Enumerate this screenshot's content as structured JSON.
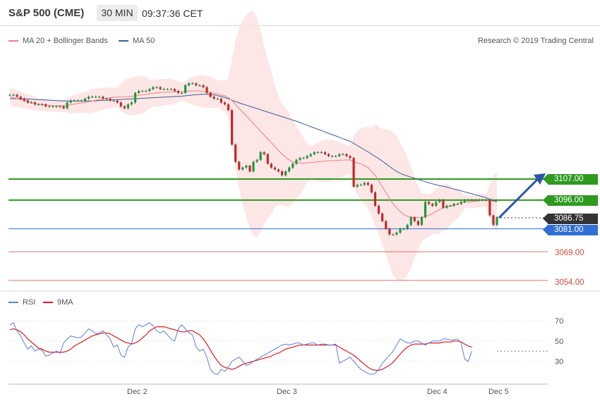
{
  "header": {
    "title": "S&P 500 (CME)",
    "timeframe": "30 MIN",
    "time": "09:37:36 CET"
  },
  "legend": {
    "ma20_label": "MA 20 + Bollinger Bands",
    "ma50_label": "MA 50",
    "rsi_label": "RSI",
    "ma9_label": "9MA",
    "credit": "Research © 2019 Trading Central"
  },
  "colors": {
    "ma20": "#f08080",
    "ma50": "#3b5f93",
    "band_fill": "#fde2e2",
    "up": "#1a9b3e",
    "down": "#c62828",
    "support": "#2f6fd6",
    "resistance": "#2e9a1f",
    "target": "#d64a3c",
    "last": "#333333",
    "arrow": "#2c56a8"
  },
  "chart_data": [
    {
      "type": "line",
      "subtype": "candlestick",
      "xaxis_labels": [
        "Dec 2",
        "Dec 3",
        "Dec 4",
        "Dec 5"
      ],
      "levels": [
        {
          "value": 3107.0,
          "label": "3107.00",
          "kind": "resistance"
        },
        {
          "value": 3096.0,
          "label": "3096.00",
          "kind": "resistance"
        },
        {
          "value": 3086.75,
          "label": "3086.75",
          "kind": "last"
        },
        {
          "value": 3081.0,
          "label": "3081.00",
          "kind": "support"
        },
        {
          "value": 3069.0,
          "label": "3069.00",
          "kind": "target"
        },
        {
          "value": 3054.0,
          "label": "3054.00",
          "kind": "target"
        }
      ],
      "close": [
        3151,
        3151,
        3150,
        3149,
        3148,
        3147,
        3147,
        3146,
        3146,
        3146,
        3145,
        3145,
        3145,
        3145,
        3145,
        3144,
        3147,
        3148,
        3148,
        3148,
        3148,
        3149,
        3150,
        3150,
        3150,
        3150,
        3149,
        3149,
        3148,
        3148,
        3147,
        3145,
        3144,
        3146,
        3147,
        3152,
        3153,
        3153,
        3153,
        3154,
        3155,
        3155,
        3154,
        3154,
        3154,
        3154,
        3153,
        3152,
        3152,
        3156,
        3157,
        3157,
        3156,
        3156,
        3155,
        3152,
        3150,
        3149,
        3149,
        3147,
        3146,
        3143,
        3125,
        3116,
        3112,
        3113,
        3114,
        3111,
        3116,
        3117,
        3121,
        3120,
        3115,
        3113,
        3112,
        3111,
        3109,
        3111,
        3113,
        3115,
        3117,
        3118,
        3118,
        3119,
        3120,
        3121,
        3121,
        3121,
        3120,
        3119,
        3119,
        3119,
        3120,
        3120,
        3119,
        3118,
        3103,
        3104,
        3104,
        3105,
        3104,
        3100,
        3093,
        3089,
        3085,
        3081,
        3078,
        3078,
        3079,
        3081,
        3081,
        3083,
        3087,
        3085,
        3083,
        3087,
        3095,
        3094,
        3093,
        3095,
        3096,
        3092,
        3093,
        3093,
        3094,
        3094,
        3095,
        3096,
        3096,
        3096,
        3096,
        3096,
        3096,
        3096,
        3088,
        3083,
        3087
      ],
      "series": [
        {
          "name": "MA 20 + Bollinger Bands",
          "values": [
            3150,
            3149.5,
            3149,
            3148.5,
            3148,
            3147.5,
            3147,
            3146.5,
            3146,
            3146,
            3145.8,
            3145.5,
            3145.3,
            3145.2,
            3145.2,
            3145.3,
            3145.5,
            3145.8,
            3146.2,
            3146.5,
            3146.8,
            3147,
            3147.4,
            3147.8,
            3148.2,
            3148.6,
            3149,
            3149.3,
            3149.5,
            3149.7,
            3149.8,
            3149.9,
            3150,
            3150,
            3150.2,
            3150.5,
            3150.8,
            3151,
            3151.2,
            3151.5,
            3151.8,
            3152,
            3152.2,
            3152.4,
            3152.5,
            3152.6,
            3152.6,
            3152.6,
            3152.6,
            3152.8,
            3153,
            3153,
            3153,
            3153,
            3152.8,
            3152.5,
            3152.2,
            3151.8,
            3151.5,
            3151,
            3150.5,
            3149.5,
            3148,
            3146,
            3144,
            3142,
            3140,
            3138,
            3136,
            3134,
            3132,
            3130,
            3128,
            3126,
            3124,
            3122,
            3120,
            3118.5,
            3117,
            3116,
            3115.5,
            3115.3,
            3115.3,
            3115.4,
            3115.6,
            3115.8,
            3116,
            3116.2,
            3116.4,
            3116.5,
            3116.6,
            3116.7,
            3116.8,
            3116.9,
            3117,
            3117,
            3116,
            3115.5,
            3115,
            3114,
            3113,
            3111,
            3109,
            3106,
            3103,
            3100,
            3097,
            3094,
            3092,
            3090,
            3088.5,
            3087.5,
            3087,
            3086.8,
            3086.8,
            3087,
            3087.5,
            3088,
            3089,
            3090,
            3091,
            3092,
            3092.5,
            3093,
            3093.5,
            3094,
            3094.5,
            3095,
            3095,
            3095.2,
            3095.4,
            3095.6,
            3095.8,
            3095.8,
            3095.6,
            3095.3,
            3095
          ]
        },
        {
          "name": "MA 50",
          "values": [
            3149,
            3149,
            3149,
            3149,
            3148.9,
            3148.8,
            3148.7,
            3148.6,
            3148.5,
            3148.4,
            3148.3,
            3148.2,
            3148.1,
            3148,
            3147.9,
            3147.8,
            3147.8,
            3147.8,
            3147.8,
            3147.8,
            3147.8,
            3147.8,
            3147.8,
            3147.8,
            3147.9,
            3148,
            3148.1,
            3148.2,
            3148.3,
            3148.4,
            3148.5,
            3148.6,
            3148.7,
            3148.8,
            3148.9,
            3149,
            3149.1,
            3149.2,
            3149.3,
            3149.4,
            3149.5,
            3149.6,
            3149.7,
            3149.8,
            3149.9,
            3150,
            3150.1,
            3150.2,
            3150.3,
            3150.5,
            3150.7,
            3150.9,
            3151.1,
            3151.2,
            3151.3,
            3151.3,
            3151.2,
            3151,
            3150.6,
            3150.2,
            3149.6,
            3149,
            3148.2,
            3147.5,
            3146.8,
            3146.2,
            3145.6,
            3145,
            3144.4,
            3143.8,
            3143.2,
            3142.6,
            3142,
            3141.4,
            3140.8,
            3140.2,
            3139.6,
            3139,
            3138.4,
            3137.8,
            3137.2,
            3136.5,
            3135.8,
            3135.1,
            3134.4,
            3133.7,
            3133,
            3132.3,
            3131.6,
            3130.9,
            3130.2,
            3129.5,
            3128.8,
            3128.1,
            3127.4,
            3126.7,
            3125.6,
            3124.5,
            3123.4,
            3122.3,
            3121.2,
            3120,
            3118.8,
            3117.6,
            3116.4,
            3115,
            3113.6,
            3112.2,
            3111,
            3110,
            3109.2,
            3108.6,
            3108,
            3107.4,
            3106.8,
            3106.2,
            3105.6,
            3105,
            3104.5,
            3104,
            3103.6,
            3103.2,
            3102.8,
            3102.3,
            3101.8,
            3101.3,
            3100.8,
            3100.3,
            3099.8,
            3099.3,
            3098.8,
            3098.3,
            3097.8,
            3097.2,
            3096.5,
            3095.9,
            3095.2
          ]
        }
      ]
    },
    {
      "type": "line",
      "yticks": [
        70,
        50,
        30
      ],
      "series": [
        {
          "name": "RSI",
          "values": [
            66,
            68,
            60,
            55,
            48,
            42,
            45,
            40,
            42,
            41,
            35,
            36,
            38,
            40,
            38,
            48,
            52,
            55,
            54,
            53,
            54,
            58,
            62,
            60,
            57,
            58,
            60,
            56,
            52,
            44,
            46,
            36,
            34,
            44,
            48,
            62,
            66,
            64,
            66,
            68,
            65,
            60,
            58,
            60,
            56,
            52,
            50,
            62,
            66,
            62,
            58,
            56,
            44,
            40,
            42,
            34,
            22,
            18,
            17,
            22,
            20,
            24,
            30,
            32,
            34,
            30,
            26,
            27,
            30,
            32,
            34,
            36,
            38,
            40,
            42,
            44,
            46,
            47,
            46,
            47,
            48,
            48,
            46,
            47,
            48,
            48,
            46,
            47,
            47,
            46,
            46,
            47,
            28,
            30,
            32,
            34,
            30,
            26,
            22,
            20,
            18,
            17,
            18,
            22,
            28,
            32,
            36,
            40,
            46,
            52,
            50,
            48,
            48,
            50,
            50,
            48,
            46,
            48,
            50,
            50,
            50,
            52,
            52,
            51,
            51,
            52,
            48,
            32,
            30,
            40
          ]
        },
        {
          "name": "9MA",
          "values": [
            61,
            62,
            61,
            59,
            56,
            52,
            49,
            46,
            43,
            42,
            40,
            39,
            39,
            39,
            39,
            39,
            40,
            42,
            45,
            47,
            49,
            51,
            53,
            55,
            56,
            57,
            58,
            58,
            57,
            55,
            53,
            51,
            49,
            48,
            47,
            48,
            50,
            53,
            56,
            60,
            62,
            64,
            64,
            64,
            63,
            62,
            61,
            60,
            59,
            59,
            60,
            60,
            58,
            56,
            52,
            47,
            41,
            35,
            30,
            26,
            24,
            23,
            22,
            23,
            25,
            27,
            28,
            29,
            30,
            31,
            32,
            33,
            34,
            35,
            37,
            38,
            40,
            42,
            43,
            44,
            45,
            46,
            46,
            46,
            46,
            46,
            46,
            46,
            46,
            46,
            46,
            46,
            44,
            42,
            40,
            38,
            36,
            33,
            30,
            27,
            24,
            22,
            21,
            21,
            22,
            24,
            26,
            29,
            33,
            37,
            41,
            44,
            46,
            47,
            47,
            47,
            47,
            48,
            48,
            48,
            48,
            49,
            49,
            49,
            50,
            50,
            49,
            47,
            45,
            44
          ]
        }
      ]
    }
  ]
}
